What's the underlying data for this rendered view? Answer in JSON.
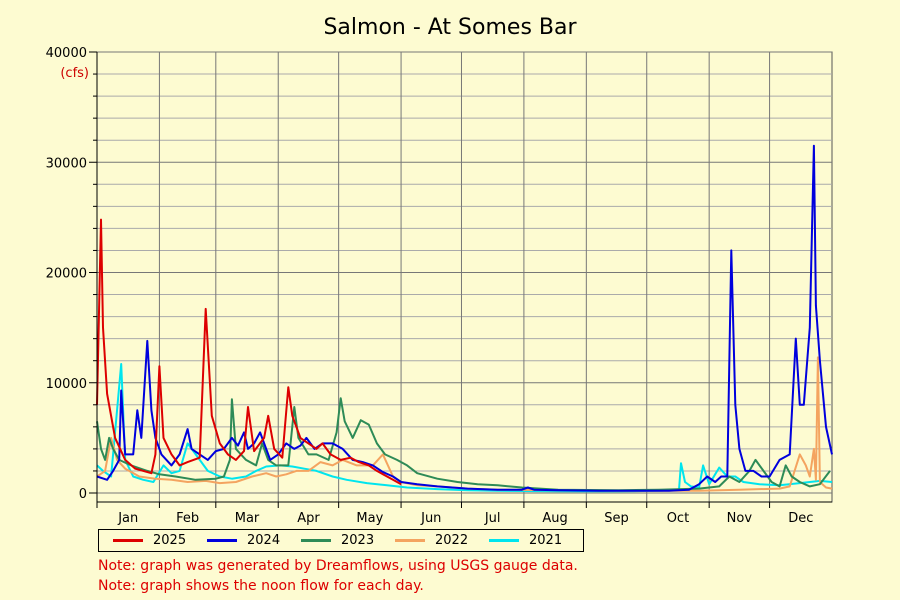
{
  "chart_data": {
    "type": "line",
    "title": "Salmon - At Somes Bar",
    "y_unit": "(cfs)",
    "ylim": [
      0,
      40000
    ],
    "y_ticks": [
      0,
      10000,
      20000,
      30000,
      40000
    ],
    "x_unit": "day_of_year",
    "xlim": [
      1,
      366
    ],
    "months": [
      {
        "label": "Jan",
        "start": 1
      },
      {
        "label": "Feb",
        "start": 32
      },
      {
        "label": "Mar",
        "start": 60
      },
      {
        "label": "Apr",
        "start": 91
      },
      {
        "label": "May",
        "start": 121
      },
      {
        "label": "Jun",
        "start": 152
      },
      {
        "label": "Jul",
        "start": 182
      },
      {
        "label": "Aug",
        "start": 213
      },
      {
        "label": "Sep",
        "start": 244
      },
      {
        "label": "Oct",
        "start": 274
      },
      {
        "label": "Nov",
        "start": 305
      },
      {
        "label": "Dec",
        "start": 335
      }
    ],
    "grid": true,
    "legend_position": "bottom",
    "series": [
      {
        "name": "2025",
        "color": "#dd0000",
        "points": [
          [
            1,
            8000
          ],
          [
            3,
            24800
          ],
          [
            4,
            15000
          ],
          [
            6,
            9000
          ],
          [
            10,
            5000
          ],
          [
            15,
            3000
          ],
          [
            20,
            2200
          ],
          [
            28,
            1800
          ],
          [
            30,
            3500
          ],
          [
            32,
            11500
          ],
          [
            34,
            5000
          ],
          [
            38,
            3500
          ],
          [
            42,
            2500
          ],
          [
            46,
            2800
          ],
          [
            52,
            3200
          ],
          [
            55,
            16700
          ],
          [
            58,
            7000
          ],
          [
            62,
            4500
          ],
          [
            66,
            3500
          ],
          [
            70,
            3000
          ],
          [
            74,
            3800
          ],
          [
            76,
            7800
          ],
          [
            79,
            3800
          ],
          [
            84,
            5000
          ],
          [
            86,
            7000
          ],
          [
            89,
            4000
          ],
          [
            93,
            3200
          ],
          [
            96,
            9600
          ],
          [
            98,
            7000
          ],
          [
            102,
            5000
          ],
          [
            106,
            4500
          ],
          [
            110,
            4000
          ],
          [
            113,
            4500
          ],
          [
            117,
            3500
          ],
          [
            122,
            3000
          ],
          [
            127,
            3200
          ],
          [
            131,
            2800
          ],
          [
            136,
            2500
          ],
          [
            140,
            2000
          ],
          [
            144,
            1600
          ],
          [
            148,
            1200
          ],
          [
            152,
            800
          ]
        ]
      },
      {
        "name": "2024",
        "color": "#0000dd",
        "points": [
          [
            1,
            1500
          ],
          [
            6,
            1200
          ],
          [
            9,
            2000
          ],
          [
            12,
            3000
          ],
          [
            13,
            9300
          ],
          [
            15,
            3500
          ],
          [
            19,
            3500
          ],
          [
            21,
            7500
          ],
          [
            23,
            5000
          ],
          [
            26,
            13800
          ],
          [
            28,
            7500
          ],
          [
            30,
            5000
          ],
          [
            33,
            3500
          ],
          [
            38,
            2500
          ],
          [
            42,
            3500
          ],
          [
            46,
            5800
          ],
          [
            48,
            4000
          ],
          [
            52,
            3500
          ],
          [
            56,
            3000
          ],
          [
            60,
            3800
          ],
          [
            64,
            4000
          ],
          [
            68,
            5000
          ],
          [
            71,
            4300
          ],
          [
            74,
            5500
          ],
          [
            76,
            4000
          ],
          [
            79,
            4500
          ],
          [
            82,
            5500
          ],
          [
            87,
            3000
          ],
          [
            91,
            3500
          ],
          [
            95,
            4500
          ],
          [
            99,
            4000
          ],
          [
            102,
            4300
          ],
          [
            105,
            5000
          ],
          [
            109,
            4000
          ],
          [
            113,
            4500
          ],
          [
            118,
            4500
          ],
          [
            123,
            4000
          ],
          [
            128,
            3000
          ],
          [
            133,
            2800
          ],
          [
            138,
            2500
          ],
          [
            143,
            1900
          ],
          [
            148,
            1500
          ],
          [
            152,
            1000
          ],
          [
            160,
            800
          ],
          [
            170,
            600
          ],
          [
            185,
            400
          ],
          [
            200,
            300
          ],
          [
            212,
            300
          ],
          [
            215,
            500
          ],
          [
            218,
            300
          ],
          [
            230,
            250
          ],
          [
            250,
            200
          ],
          [
            270,
            200
          ],
          [
            285,
            200
          ],
          [
            295,
            300
          ],
          [
            300,
            800
          ],
          [
            304,
            1500
          ],
          [
            308,
            1000
          ],
          [
            311,
            1500
          ],
          [
            314,
            1500
          ],
          [
            316,
            22000
          ],
          [
            318,
            8000
          ],
          [
            320,
            4000
          ],
          [
            323,
            2000
          ],
          [
            327,
            2000
          ],
          [
            331,
            1500
          ],
          [
            335,
            1500
          ],
          [
            340,
            3000
          ],
          [
            345,
            3500
          ],
          [
            348,
            14000
          ],
          [
            350,
            8000
          ],
          [
            352,
            8000
          ],
          [
            355,
            15000
          ],
          [
            357,
            31500
          ],
          [
            358,
            17000
          ],
          [
            360,
            12000
          ],
          [
            363,
            6000
          ],
          [
            366,
            3500
          ]
        ]
      },
      {
        "name": "2023",
        "color": "#2e8b57",
        "points": [
          [
            1,
            6500
          ],
          [
            3,
            4000
          ],
          [
            5,
            3000
          ],
          [
            7,
            5000
          ],
          [
            9,
            4000
          ],
          [
            12,
            3000
          ],
          [
            18,
            2500
          ],
          [
            26,
            2000
          ],
          [
            32,
            1700
          ],
          [
            40,
            1500
          ],
          [
            50,
            1200
          ],
          [
            60,
            1300
          ],
          [
            64,
            1500
          ],
          [
            67,
            3000
          ],
          [
            68,
            8500
          ],
          [
            70,
            4000
          ],
          [
            75,
            3000
          ],
          [
            80,
            2500
          ],
          [
            83,
            4500
          ],
          [
            86,
            3000
          ],
          [
            90,
            2500
          ],
          [
            96,
            2500
          ],
          [
            99,
            7800
          ],
          [
            101,
            5000
          ],
          [
            106,
            3500
          ],
          [
            110,
            3500
          ],
          [
            116,
            3000
          ],
          [
            120,
            5500
          ],
          [
            122,
            8600
          ],
          [
            124,
            6500
          ],
          [
            128,
            5000
          ],
          [
            132,
            6600
          ],
          [
            136,
            6200
          ],
          [
            140,
            4500
          ],
          [
            144,
            3500
          ],
          [
            150,
            3000
          ],
          [
            155,
            2500
          ],
          [
            160,
            1800
          ],
          [
            170,
            1300
          ],
          [
            180,
            1000
          ],
          [
            190,
            800
          ],
          [
            200,
            700
          ],
          [
            212,
            500
          ],
          [
            230,
            300
          ],
          [
            260,
            250
          ],
          [
            280,
            300
          ],
          [
            300,
            400
          ],
          [
            310,
            600
          ],
          [
            315,
            1500
          ],
          [
            320,
            1000
          ],
          [
            325,
            2000
          ],
          [
            328,
            3000
          ],
          [
            332,
            2000
          ],
          [
            336,
            1000
          ],
          [
            340,
            600
          ],
          [
            343,
            2500
          ],
          [
            346,
            1500
          ],
          [
            350,
            1000
          ],
          [
            355,
            600
          ],
          [
            360,
            800
          ],
          [
            365,
            2000
          ]
        ]
      },
      {
        "name": "2022",
        "color": "#f4a460",
        "points": [
          [
            1,
            1500
          ],
          [
            5,
            2000
          ],
          [
            8,
            5000
          ],
          [
            11,
            3000
          ],
          [
            15,
            2200
          ],
          [
            22,
            1500
          ],
          [
            30,
            1300
          ],
          [
            38,
            1200
          ],
          [
            46,
            1000
          ],
          [
            55,
            1100
          ],
          [
            62,
            900
          ],
          [
            70,
            1000
          ],
          [
            78,
            1500
          ],
          [
            85,
            1800
          ],
          [
            90,
            1500
          ],
          [
            95,
            1700
          ],
          [
            100,
            2000
          ],
          [
            106,
            2000
          ],
          [
            112,
            2800
          ],
          [
            118,
            2500
          ],
          [
            123,
            3000
          ],
          [
            130,
            2500
          ],
          [
            138,
            2500
          ],
          [
            143,
            3500
          ],
          [
            148,
            1500
          ],
          [
            152,
            1000
          ],
          [
            160,
            700
          ],
          [
            170,
            600
          ],
          [
            185,
            400
          ],
          [
            200,
            300
          ],
          [
            230,
            250
          ],
          [
            260,
            200
          ],
          [
            280,
            200
          ],
          [
            300,
            200
          ],
          [
            320,
            300
          ],
          [
            340,
            400
          ],
          [
            345,
            600
          ],
          [
            350,
            3500
          ],
          [
            353,
            2500
          ],
          [
            355,
            1500
          ],
          [
            357,
            4000
          ],
          [
            358,
            1200
          ],
          [
            359,
            12300
          ],
          [
            360,
            1000
          ],
          [
            363,
            500
          ],
          [
            366,
            400
          ]
        ]
      },
      {
        "name": "2021",
        "color": "#00e5ee",
        "points": [
          [
            1,
            2500
          ],
          [
            4,
            2000
          ],
          [
            8,
            1500
          ],
          [
            13,
            11700
          ],
          [
            15,
            3000
          ],
          [
            19,
            1500
          ],
          [
            24,
            1200
          ],
          [
            29,
            1000
          ],
          [
            34,
            2500
          ],
          [
            38,
            1800
          ],
          [
            42,
            2000
          ],
          [
            46,
            4500
          ],
          [
            50,
            3500
          ],
          [
            56,
            2000
          ],
          [
            62,
            1500
          ],
          [
            68,
            1300
          ],
          [
            75,
            1500
          ],
          [
            80,
            2000
          ],
          [
            85,
            2400
          ],
          [
            92,
            2500
          ],
          [
            98,
            2400
          ],
          [
            104,
            2200
          ],
          [
            110,
            2000
          ],
          [
            118,
            1500
          ],
          [
            125,
            1200
          ],
          [
            135,
            900
          ],
          [
            145,
            700
          ],
          [
            155,
            500
          ],
          [
            170,
            350
          ],
          [
            185,
            250
          ],
          [
            200,
            200
          ],
          [
            230,
            150
          ],
          [
            260,
            150
          ],
          [
            280,
            200
          ],
          [
            290,
            300
          ],
          [
            291,
            2700
          ],
          [
            293,
            1000
          ],
          [
            296,
            600
          ],
          [
            300,
            500
          ],
          [
            302,
            2500
          ],
          [
            305,
            800
          ],
          [
            310,
            2300
          ],
          [
            314,
            1500
          ],
          [
            318,
            1500
          ],
          [
            322,
            1000
          ],
          [
            330,
            800
          ],
          [
            340,
            700
          ],
          [
            350,
            900
          ],
          [
            360,
            1100
          ],
          [
            366,
            1000
          ]
        ]
      }
    ]
  },
  "notes": [
    "Note: graph was generated by Dreamflows, using USGS gauge data.",
    "Note: graph shows the noon flow for each day."
  ]
}
